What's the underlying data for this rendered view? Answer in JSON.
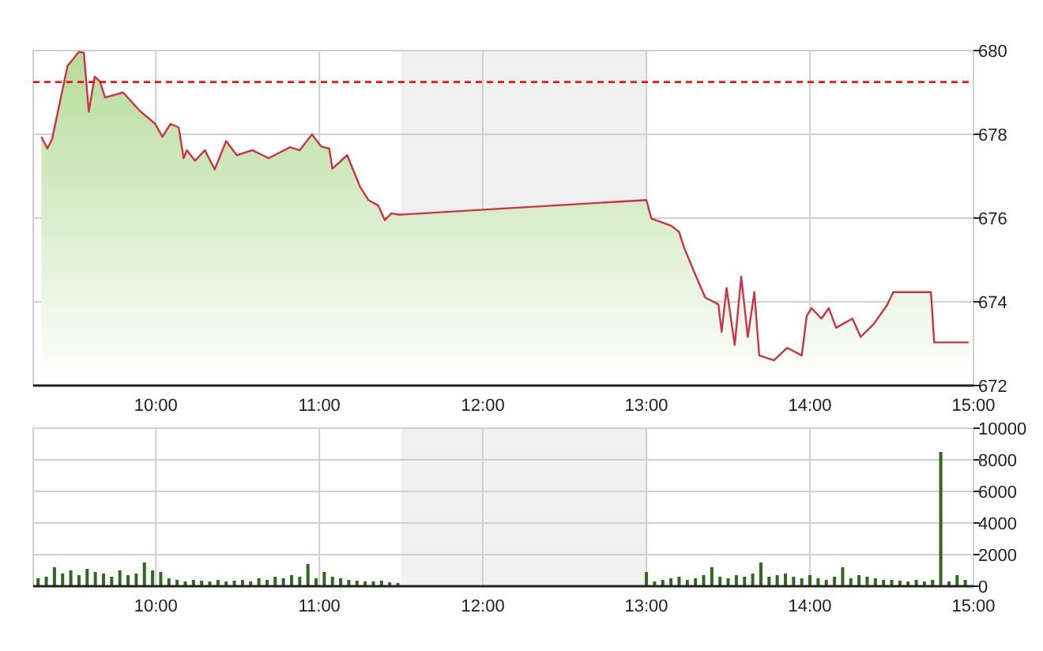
{
  "chart_data": [
    {
      "type": "area",
      "xlim": [
        9.25,
        15
      ],
      "ylim": [
        672,
        680
      ],
      "xticks": [
        {
          "value": 10,
          "label": "10:00"
        },
        {
          "value": 11,
          "label": "11:00"
        },
        {
          "value": 12,
          "label": "12:00"
        },
        {
          "value": 13,
          "label": "13:00"
        },
        {
          "value": 14,
          "label": "14:00"
        },
        {
          "value": 15,
          "label": "15:00"
        }
      ],
      "yticks": [
        672,
        674,
        676,
        678,
        680
      ],
      "grid": true,
      "bands": [
        {
          "axis": "x",
          "from": 11.5,
          "to": 13,
          "color": "#f0f0f0"
        }
      ],
      "ref_lines": [
        {
          "axis": "y",
          "value": 679.25,
          "color": "#ff0000",
          "line_style": "dashed"
        }
      ],
      "series": [
        {
          "color": "#cc3344",
          "x": [
            9.3,
            9.337,
            9.366,
            9.46,
            9.53,
            9.56,
            9.59,
            9.626,
            9.658,
            9.69,
            9.8,
            9.9,
            9.996,
            10.04,
            10.09,
            10.14,
            10.17,
            10.19,
            10.24,
            10.3,
            10.36,
            10.43,
            10.495,
            10.59,
            10.69,
            10.82,
            10.88,
            10.955,
            11.01,
            11.06,
            11.08,
            11.17,
            11.25,
            11.3,
            11.36,
            11.4,
            11.44,
            11.49,
            13.0,
            13.03,
            13.15,
            13.2,
            13.23,
            13.29,
            13.36,
            13.44,
            13.46,
            13.49,
            13.54,
            13.58,
            13.62,
            13.66,
            13.69,
            13.78,
            13.86,
            13.95,
            13.98,
            14.01,
            14.07,
            14.115,
            14.16,
            14.26,
            14.31,
            14.39,
            14.47,
            14.51,
            14.74,
            14.76,
            14.97
          ],
          "values": [
            677.94,
            677.66,
            677.89,
            679.63,
            679.97,
            679.95,
            678.54,
            679.38,
            679.26,
            678.88,
            679.0,
            678.57,
            678.25,
            677.94,
            678.25,
            678.16,
            677.43,
            677.62,
            677.37,
            677.62,
            677.16,
            677.84,
            677.5,
            677.62,
            677.43,
            677.69,
            677.62,
            678.0,
            677.71,
            677.66,
            677.18,
            677.5,
            676.74,
            676.43,
            676.3,
            675.95,
            676.11,
            676.08,
            676.43,
            675.99,
            675.82,
            675.67,
            675.3,
            674.73,
            674.1,
            673.94,
            673.28,
            674.33,
            672.97,
            674.6,
            673.16,
            674.23,
            672.72,
            672.6,
            672.9,
            672.72,
            673.66,
            673.85,
            673.6,
            673.85,
            673.38,
            673.6,
            673.16,
            673.47,
            673.91,
            674.23,
            674.23,
            673.03,
            673.03
          ]
        }
      ]
    },
    {
      "type": "bar",
      "xlim": [
        9.25,
        15
      ],
      "ylim": [
        0,
        10000
      ],
      "xticks": [
        {
          "value": 10,
          "label": "10:00"
        },
        {
          "value": 11,
          "label": "11:00"
        },
        {
          "value": 12,
          "label": "12:00"
        },
        {
          "value": 13,
          "label": "13:00"
        },
        {
          "value": 14,
          "label": "14:00"
        },
        {
          "value": 15,
          "label": "15:00"
        }
      ],
      "yticks": [
        0,
        2000,
        4000,
        6000,
        8000,
        10000
      ],
      "grid": true,
      "bands": [
        {
          "axis": "x",
          "from": 11.5,
          "to": 13,
          "color": "#f0f0f0"
        }
      ],
      "series": [
        {
          "color": "#2d6a1e",
          "x": [
            9.28,
            9.33,
            9.38,
            9.43,
            9.48,
            9.53,
            9.58,
            9.63,
            9.68,
            9.73,
            9.78,
            9.83,
            9.88,
            9.93,
            9.98,
            10.03,
            10.08,
            10.13,
            10.18,
            10.23,
            10.28,
            10.33,
            10.38,
            10.43,
            10.48,
            10.53,
            10.58,
            10.63,
            10.68,
            10.73,
            10.78,
            10.83,
            10.88,
            10.93,
            10.98,
            11.03,
            11.08,
            11.13,
            11.18,
            11.23,
            11.28,
            11.33,
            11.38,
            11.43,
            11.48,
            13.0,
            13.05,
            13.1,
            13.15,
            13.2,
            13.25,
            13.3,
            13.35,
            13.4,
            13.45,
            13.5,
            13.55,
            13.6,
            13.65,
            13.7,
            13.75,
            13.8,
            13.85,
            13.9,
            13.95,
            14.0,
            14.05,
            14.1,
            14.15,
            14.2,
            14.25,
            14.3,
            14.35,
            14.4,
            14.45,
            14.5,
            14.55,
            14.6,
            14.65,
            14.7,
            14.75,
            14.8,
            14.85,
            14.9,
            14.95
          ],
          "values": [
            500,
            600,
            1200,
            800,
            1000,
            700,
            1100,
            900,
            800,
            600,
            1000,
            700,
            800,
            1500,
            1000,
            900,
            500,
            400,
            300,
            400,
            350,
            300,
            400,
            300,
            350,
            400,
            300,
            500,
            400,
            600,
            500,
            700,
            600,
            1400,
            500,
            900,
            600,
            500,
            400,
            350,
            300,
            300,
            350,
            250,
            200,
            900,
            300,
            400,
            500,
            600,
            400,
            500,
            700,
            1200,
            600,
            500,
            700,
            600,
            800,
            1500,
            600,
            700,
            800,
            600,
            500,
            700,
            500,
            400,
            600,
            1200,
            500,
            700,
            600,
            500,
            400,
            400,
            350,
            300,
            400,
            300,
            400,
            8500,
            300,
            700,
            400
          ]
        }
      ]
    }
  ]
}
